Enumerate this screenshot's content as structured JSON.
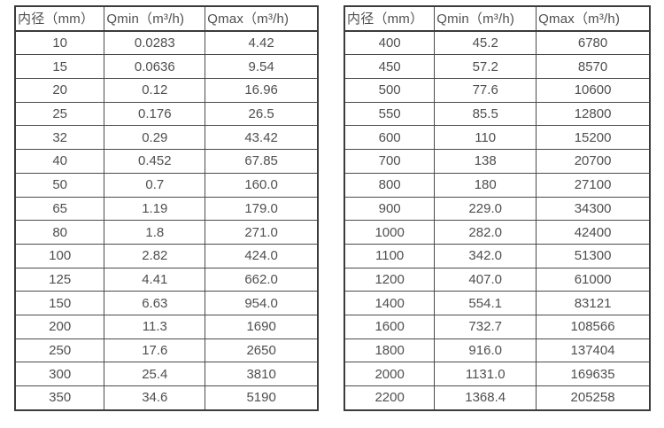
{
  "tables": [
    {
      "name": "flow-table-left",
      "headers": [
        "内径（mm）",
        "Qmin（m³/h)",
        "Qmax（m³/h)"
      ],
      "rows": [
        [
          "10",
          "0.0283",
          "4.42"
        ],
        [
          "15",
          "0.0636",
          "9.54"
        ],
        [
          "20",
          "0.12",
          "16.96"
        ],
        [
          "25",
          "0.176",
          "26.5"
        ],
        [
          "32",
          "0.29",
          "43.42"
        ],
        [
          "40",
          "0.452",
          "67.85"
        ],
        [
          "50",
          "0.7",
          "160.0"
        ],
        [
          "65",
          "1.19",
          "179.0"
        ],
        [
          "80",
          "1.8",
          "271.0"
        ],
        [
          "100",
          "2.82",
          "424.0"
        ],
        [
          "125",
          "4.41",
          "662.0"
        ],
        [
          "150",
          "6.63",
          "954.0"
        ],
        [
          "200",
          "11.3",
          "1690"
        ],
        [
          "250",
          "17.6",
          "2650"
        ],
        [
          "300",
          "25.4",
          "3810"
        ],
        [
          "350",
          "34.6",
          "5190"
        ]
      ]
    },
    {
      "name": "flow-table-right",
      "headers": [
        "内径（mm）",
        "Qmin（m³/h)",
        "Qmax（m³/h)"
      ],
      "rows": [
        [
          "400",
          "45.2",
          "6780"
        ],
        [
          "450",
          "57.2",
          "8570"
        ],
        [
          "500",
          "77.6",
          "10600"
        ],
        [
          "550",
          "85.5",
          "12800"
        ],
        [
          "600",
          "110",
          "15200"
        ],
        [
          "700",
          "138",
          "20700"
        ],
        [
          "800",
          "180",
          "27100"
        ],
        [
          "900",
          "229.0",
          "34300"
        ],
        [
          "1000",
          "282.0",
          "42400"
        ],
        [
          "1100",
          "342.0",
          "51300"
        ],
        [
          "1200",
          "407.0",
          "61000"
        ],
        [
          "1400",
          "554.1",
          "83121"
        ],
        [
          "1600",
          "732.7",
          "108566"
        ],
        [
          "1800",
          "916.0",
          "137404"
        ],
        [
          "2000",
          "1131.0",
          "169635"
        ],
        [
          "2200",
          "1368.4",
          "205258"
        ]
      ]
    }
  ],
  "colors": {
    "border": "#3b3b3b",
    "grid": "#4a4a4a",
    "text": "#4f4f4f",
    "background": "#ffffff"
  }
}
